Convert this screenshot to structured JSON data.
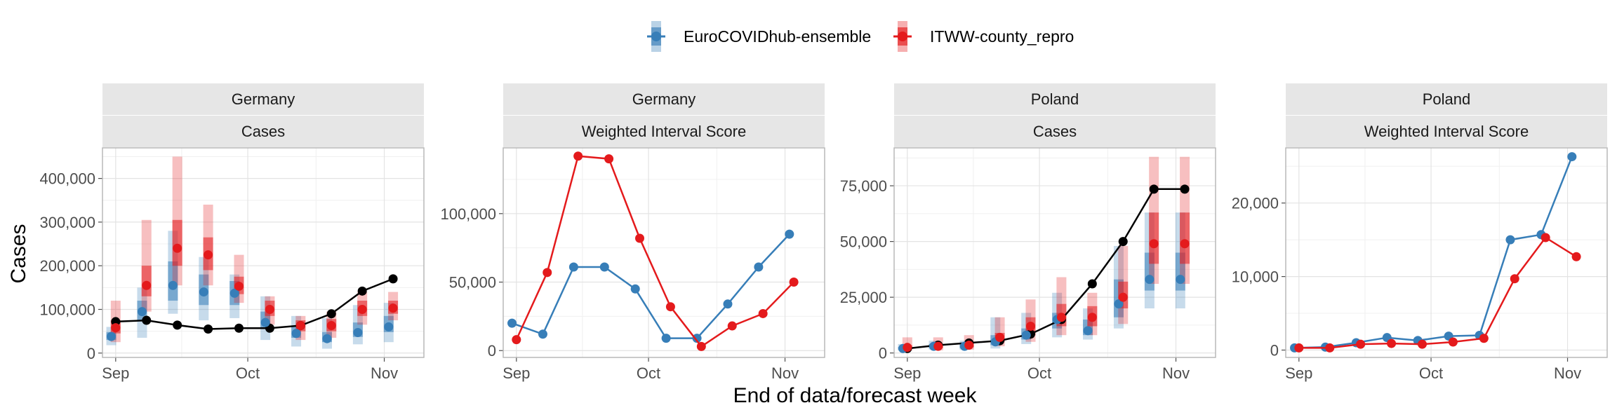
{
  "legend": {
    "items": [
      {
        "label": "EuroCOVIDhub-ensemble",
        "color": "#377EB8"
      },
      {
        "label": "ITWW-county_repro",
        "color": "#E41A1C"
      }
    ]
  },
  "xlabel": "End of data/forecast week",
  "ylabel": "Cases",
  "colors": {
    "observed": "#000000",
    "ensemble": "#377EB8",
    "itww": "#E41A1C"
  },
  "chart_data": [
    {
      "type": "line",
      "panel": [
        "Germany",
        "Cases"
      ],
      "x_ticks": [
        "Sep",
        "Oct",
        "Nov"
      ],
      "y_ticks": [
        "0",
        "100,000",
        "200,000",
        "300,000",
        "400,000"
      ],
      "xlim": [
        "2021-08-29",
        "2021-11-10"
      ],
      "ylim": [
        -10000,
        470000
      ],
      "observed": {
        "x": [
          "2021-09-01",
          "2021-09-08",
          "2021-09-15",
          "2021-09-22",
          "2021-09-29",
          "2021-10-06",
          "2021-10-13",
          "2021-10-20",
          "2021-10-27",
          "2021-11-03"
        ],
        "y": [
          72000,
          75000,
          64000,
          55000,
          57000,
          57000,
          63000,
          90000,
          142000,
          170000
        ]
      },
      "series": [
        {
          "name": "EuroCOVIDhub-ensemble",
          "x": [
            "2021-08-31",
            "2021-09-07",
            "2021-09-14",
            "2021-09-21",
            "2021-09-28",
            "2021-10-05",
            "2021-10-12",
            "2021-10-19",
            "2021-10-26",
            "2021-11-02"
          ],
          "median": [
            38000,
            95000,
            155000,
            140000,
            137000,
            70000,
            45000,
            33000,
            47000,
            60000
          ],
          "q25": [
            30000,
            75000,
            120000,
            110000,
            110000,
            55000,
            35000,
            25000,
            37000,
            48000
          ],
          "q75": [
            48000,
            120000,
            210000,
            180000,
            165000,
            95000,
            60000,
            48000,
            70000,
            85000
          ],
          "q05": [
            18000,
            35000,
            90000,
            75000,
            80000,
            30000,
            15000,
            10000,
            20000,
            25000
          ],
          "q95": [
            60000,
            150000,
            280000,
            220000,
            180000,
            130000,
            85000,
            80000,
            110000,
            115000
          ]
        },
        {
          "name": "ITWW-county_repro",
          "x": [
            "2021-09-01",
            "2021-09-08",
            "2021-09-15",
            "2021-09-22",
            "2021-09-29",
            "2021-10-06",
            "2021-10-13",
            "2021-10-20",
            "2021-10-27",
            "2021-11-03"
          ],
          "median": [
            58000,
            155000,
            240000,
            225000,
            153000,
            100000,
            63000,
            63000,
            100000,
            103000
          ],
          "q25": [
            45000,
            130000,
            200000,
            190000,
            135000,
            85000,
            50000,
            50000,
            85000,
            90000
          ],
          "q75": [
            75000,
            200000,
            305000,
            265000,
            175000,
            120000,
            75000,
            78000,
            120000,
            120000
          ],
          "q05": [
            25000,
            95000,
            155000,
            155000,
            115000,
            65000,
            30000,
            35000,
            65000,
            75000
          ],
          "q95": [
            120000,
            305000,
            450000,
            340000,
            225000,
            130000,
            85000,
            95000,
            140000,
            140000
          ]
        }
      ]
    },
    {
      "type": "line",
      "panel": [
        "Germany",
        "Weighted Interval Score"
      ],
      "x_ticks": [
        "Sep",
        "Oct",
        "Nov"
      ],
      "y_ticks": [
        "0",
        "50,000",
        "100,000"
      ],
      "xlim": [
        "2021-08-29",
        "2021-11-10"
      ],
      "ylim": [
        -5000,
        148000
      ],
      "series": [
        {
          "name": "EuroCOVIDhub-ensemble",
          "x": [
            "2021-08-31",
            "2021-09-07",
            "2021-09-14",
            "2021-09-21",
            "2021-09-28",
            "2021-10-05",
            "2021-10-12",
            "2021-10-19",
            "2021-10-26",
            "2021-11-02"
          ],
          "y": [
            20000,
            12000,
            61000,
            61000,
            45000,
            9000,
            9000,
            34000,
            61000,
            85000
          ]
        },
        {
          "name": "ITWW-county_repro",
          "x": [
            "2021-09-01",
            "2021-09-08",
            "2021-09-15",
            "2021-09-22",
            "2021-09-29",
            "2021-10-06",
            "2021-10-13",
            "2021-10-20",
            "2021-10-27",
            "2021-11-03"
          ],
          "y": [
            8000,
            57000,
            142000,
            140000,
            82000,
            32000,
            3000,
            18000,
            27000,
            50000
          ]
        }
      ]
    },
    {
      "type": "line",
      "panel": [
        "Poland",
        "Cases"
      ],
      "x_ticks": [
        "Sep",
        "Oct",
        "Nov"
      ],
      "y_ticks": [
        "0",
        "25,000",
        "50,000",
        "75,000"
      ],
      "xlim": [
        "2021-08-29",
        "2021-11-10"
      ],
      "ylim": [
        -2000,
        92000
      ],
      "observed": {
        "x": [
          "2021-09-01",
          "2021-09-08",
          "2021-09-15",
          "2021-09-22",
          "2021-09-29",
          "2021-10-06",
          "2021-10-13",
          "2021-10-20",
          "2021-10-27",
          "2021-11-03"
        ],
        "y": [
          2000,
          3500,
          4500,
          5500,
          8500,
          15000,
          31000,
          50000,
          73500,
          73500
        ]
      },
      "series": [
        {
          "name": "EuroCOVIDhub-ensemble",
          "x": [
            "2021-08-31",
            "2021-09-07",
            "2021-09-14",
            "2021-09-21",
            "2021-09-28",
            "2021-10-05",
            "2021-10-12",
            "2021-10-19",
            "2021-10-26",
            "2021-11-02"
          ],
          "median": [
            2000,
            3000,
            3000,
            5000,
            8000,
            15000,
            10000,
            22000,
            33000,
            33000
          ],
          "q25": [
            1500,
            2200,
            2200,
            3500,
            6000,
            11000,
            8000,
            16000,
            28000,
            28000
          ],
          "q75": [
            2700,
            4000,
            4000,
            8000,
            11000,
            18000,
            15000,
            33000,
            45000,
            45000
          ],
          "q05": [
            1000,
            1500,
            1500,
            2000,
            4000,
            7000,
            6000,
            11000,
            20000,
            20000
          ],
          "q95": [
            4000,
            5500,
            5500,
            16000,
            18000,
            27000,
            20000,
            48000,
            63000,
            63000
          ]
        },
        {
          "name": "ITWW-county_repro",
          "x": [
            "2021-09-01",
            "2021-09-08",
            "2021-09-15",
            "2021-09-22",
            "2021-09-29",
            "2021-10-06",
            "2021-10-13",
            "2021-10-20",
            "2021-10-27",
            "2021-11-03"
          ],
          "median": [
            2500,
            3000,
            3500,
            7000,
            12000,
            16000,
            16000,
            25000,
            49000,
            49000
          ],
          "q25": [
            1800,
            2200,
            2500,
            5000,
            8000,
            12000,
            12000,
            20000,
            40000,
            40000
          ],
          "q75": [
            3500,
            4000,
            5000,
            9000,
            16000,
            22000,
            21000,
            32000,
            63000,
            63000
          ],
          "q05": [
            1000,
            1200,
            1500,
            3000,
            5000,
            8000,
            8000,
            13000,
            31000,
            31000
          ],
          "q95": [
            7000,
            7000,
            8000,
            16000,
            24000,
            34000,
            27000,
            48000,
            88000,
            88000
          ]
        }
      ]
    },
    {
      "type": "line",
      "panel": [
        "Poland",
        "Weighted Interval Score"
      ],
      "x_ticks": [
        "Sep",
        "Oct",
        "Nov"
      ],
      "y_ticks": [
        "0",
        "10,000",
        "20,000"
      ],
      "xlim": [
        "2021-08-29",
        "2021-11-10"
      ],
      "ylim": [
        -1000,
        27500
      ],
      "series": [
        {
          "name": "EuroCOVIDhub-ensemble",
          "x": [
            "2021-08-31",
            "2021-09-07",
            "2021-09-14",
            "2021-09-21",
            "2021-09-28",
            "2021-10-05",
            "2021-10-12",
            "2021-10-19",
            "2021-10-26",
            "2021-11-02"
          ],
          "y": [
            300,
            400,
            1000,
            1700,
            1300,
            1900,
            2000,
            15000,
            15700,
            26300
          ]
        },
        {
          "name": "ITWW-county_repro",
          "x": [
            "2021-09-01",
            "2021-09-08",
            "2021-09-15",
            "2021-09-22",
            "2021-09-29",
            "2021-10-06",
            "2021-10-13",
            "2021-10-20",
            "2021-10-27",
            "2021-11-03"
          ],
          "y": [
            300,
            300,
            800,
            900,
            800,
            1100,
            1600,
            9700,
            15300,
            12700
          ]
        }
      ]
    }
  ]
}
